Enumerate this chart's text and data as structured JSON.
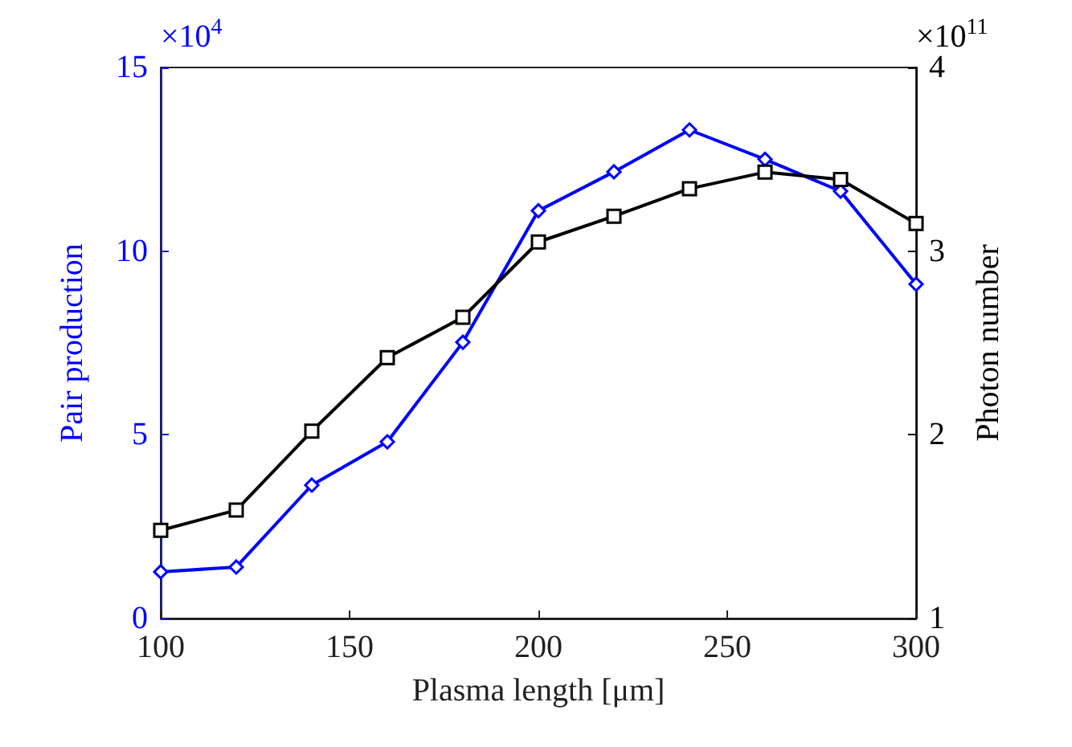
{
  "chart_data": {
    "type": "line",
    "xlabel": "Plasma length [μm]",
    "ylabel": "Pair production",
    "y2label": "Photon number",
    "x": [
      100,
      120,
      140,
      160,
      180,
      200,
      220,
      240,
      260,
      280,
      300
    ],
    "series": [
      {
        "color": "#0000ff",
        "marker": "diamond",
        "values": [
          1.27,
          1.4,
          3.63,
          4.81,
          7.52,
          11.1,
          12.16,
          13.3,
          12.5,
          11.63,
          9.1
        ]
      },
      {
        "color": "#000000",
        "marker": "square",
        "axis": "y2",
        "values": [
          1.48,
          1.59,
          2.02,
          2.42,
          2.64,
          3.05,
          3.19,
          3.34,
          3.43,
          3.39,
          3.15
        ]
      }
    ],
    "xlim": [
      100,
      300
    ],
    "xticks": [
      100,
      150,
      200,
      250,
      300
    ],
    "ylim": [
      0,
      15
    ],
    "yticks": [
      0,
      5,
      10,
      15
    ],
    "y2lim": [
      1,
      4
    ],
    "y2ticks": [
      1,
      2,
      3,
      4
    ],
    "annotations": [
      "×10$^{4}$",
      "×10$^{11}$"
    ]
  }
}
